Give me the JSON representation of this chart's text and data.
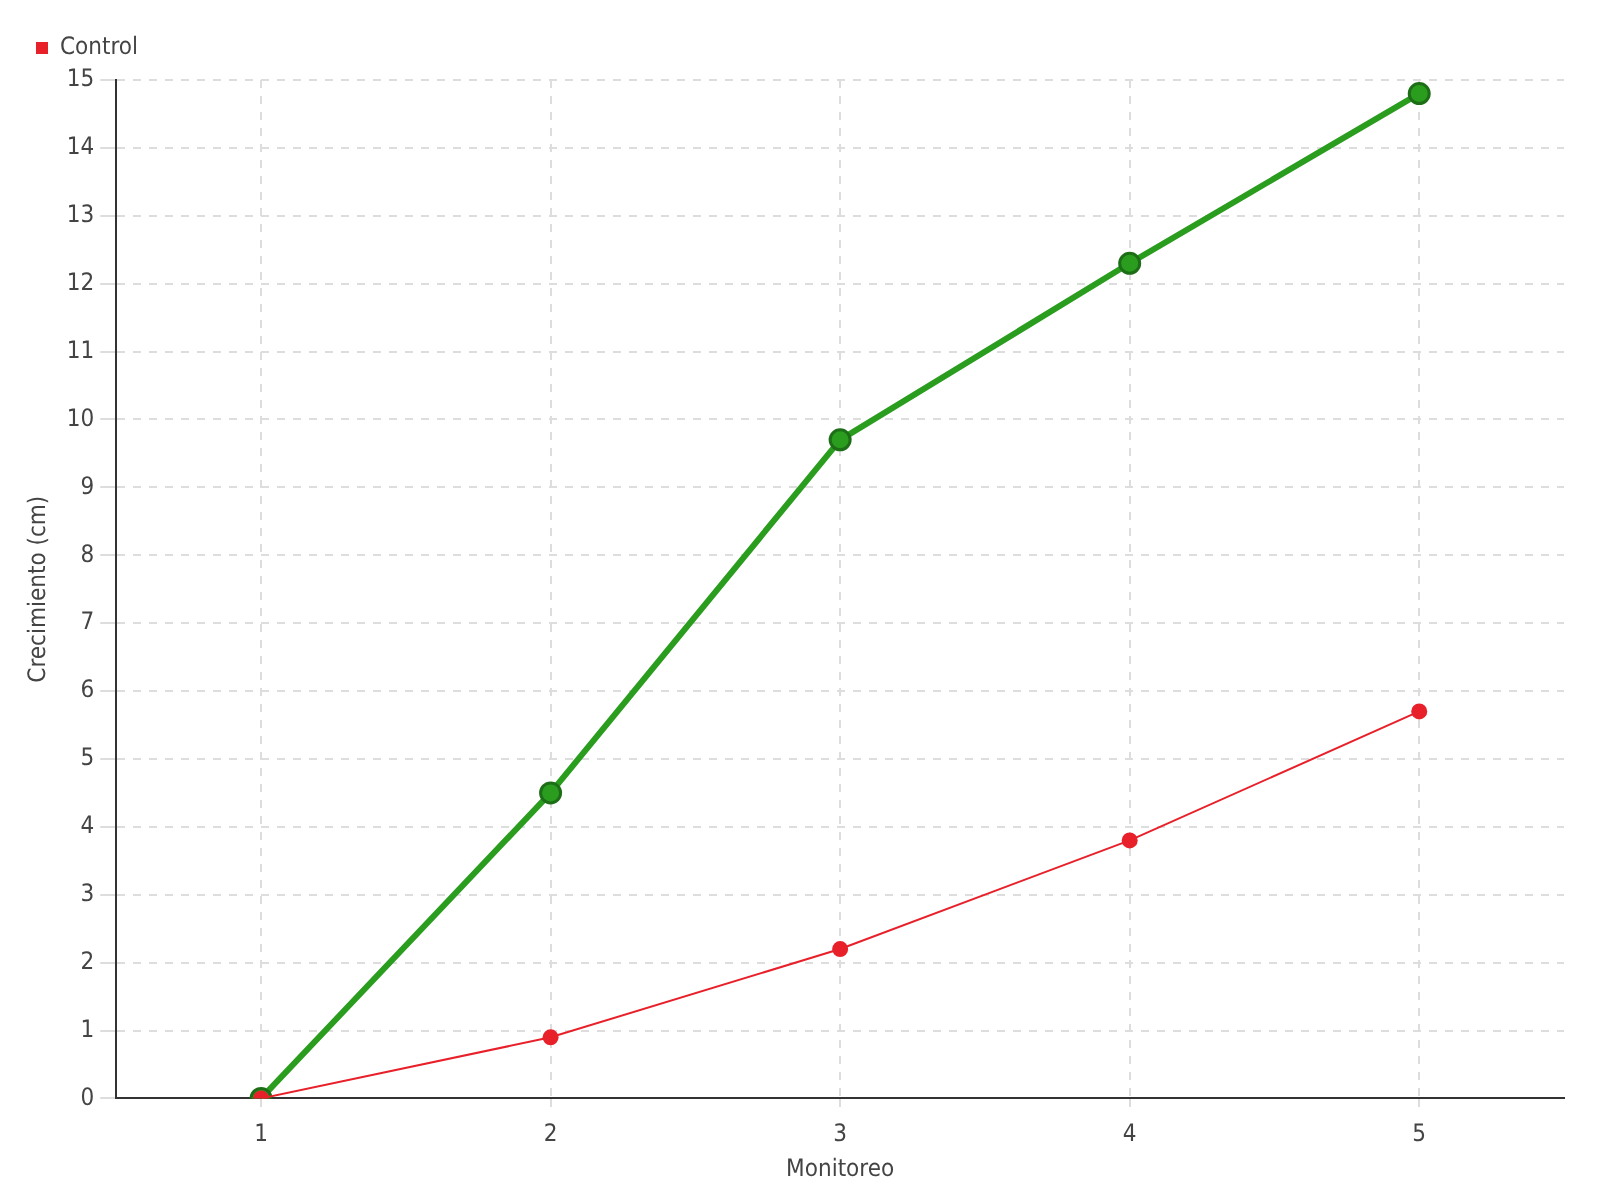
{
  "chart_data": {
    "type": "line",
    "xlabel": "Monitoreo",
    "ylabel": "Crecimiento (cm)",
    "categories": [
      "1",
      "2",
      "3",
      "4",
      "5"
    ],
    "series": [
      {
        "color": "#2a9d1f",
        "values": [
          0,
          4.5,
          9.7,
          12.3,
          14.8
        ]
      },
      {
        "name": "Control",
        "color": "#e8202a",
        "values": [
          0,
          0.9,
          2.2,
          3.8,
          5.7
        ]
      }
    ],
    "ylim": [
      0,
      15
    ],
    "yticks": [
      0,
      1,
      2,
      3,
      4,
      5,
      6,
      7,
      8,
      9,
      10,
      11,
      12,
      13,
      14,
      15
    ],
    "grid": true,
    "legend": "top left",
    "marker": "circle",
    "line_style": "solid"
  }
}
